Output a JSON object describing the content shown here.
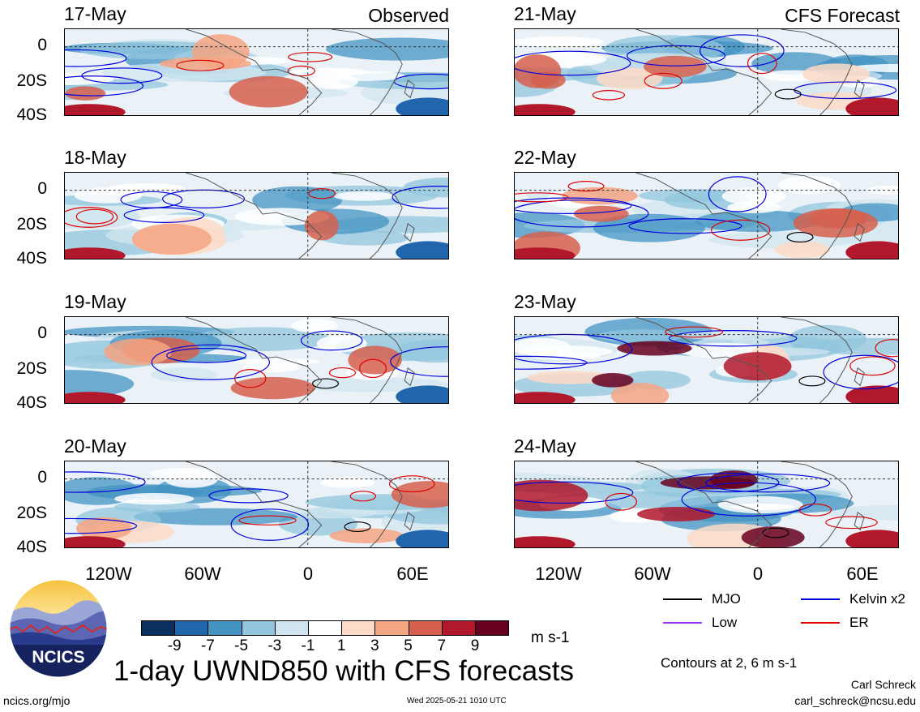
{
  "chart_data": {
    "type": "heatmap",
    "title": "1-day UWND850 with CFS forecasts",
    "units": "m s-1",
    "contour_note": "Contours at 2, 6 m s-1",
    "observed_label": "Observed",
    "forecast_label": "CFS Forecast",
    "observed_dates": [
      "17-May",
      "18-May",
      "19-May",
      "20-May"
    ],
    "forecast_dates": [
      "21-May",
      "22-May",
      "23-May",
      "24-May"
    ],
    "y_ticks": [
      "0",
      "20S",
      "40S"
    ],
    "x_ticks": [
      "120W",
      "60W",
      "0",
      "60E"
    ],
    "colorbar": {
      "labels": [
        "-9",
        "-7",
        "-5",
        "-3",
        "-1",
        "1",
        "3",
        "5",
        "7",
        "9"
      ],
      "colors": [
        "#0b2f5e",
        "#2166ac",
        "#4393c3",
        "#92c5de",
        "#d1e5f0",
        "#ffffff",
        "#fddbc7",
        "#f4a582",
        "#d6604d",
        "#b2182b",
        "#67001f"
      ]
    },
    "legend": [
      {
        "name": "MJO",
        "color": "#000000"
      },
      {
        "name": "Kelvin x2",
        "color": "#0000dd"
      },
      {
        "name": "Low",
        "color": "#9933ee"
      },
      {
        "name": "ER",
        "color": "#dd0000"
      }
    ]
  },
  "footer": {
    "site": "ncics.org/mjo",
    "timestamp": "Wed 2025-05-21 1010 UTC",
    "author": "Carl Schreck",
    "email": "carl_schreck@ncsu.edu",
    "logo_text": "NCICS"
  }
}
